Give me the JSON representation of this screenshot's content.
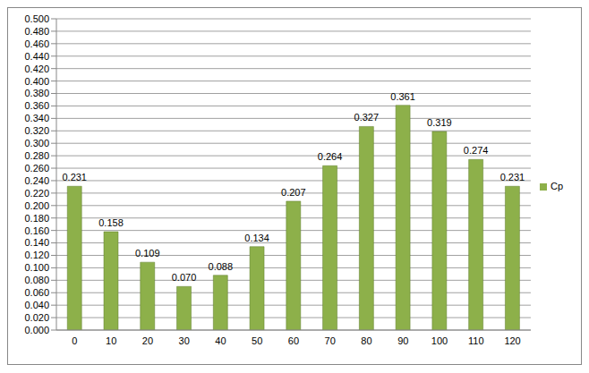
{
  "chart_data": {
    "type": "bar",
    "categories": [
      "0",
      "10",
      "20",
      "30",
      "40",
      "50",
      "60",
      "70",
      "80",
      "90",
      "100",
      "110",
      "120"
    ],
    "series": [
      {
        "name": "Cp",
        "color": "#8db04a",
        "values": [
          0.231,
          0.158,
          0.109,
          0.07,
          0.088,
          0.134,
          0.207,
          0.264,
          0.327,
          0.361,
          0.319,
          0.274,
          0.231
        ],
        "value_labels": [
          "0.231",
          "0.158",
          "0.109",
          "0.070",
          "0.088",
          "0.134",
          "0.207",
          "0.264",
          "0.327",
          "0.361",
          "0.319",
          "0.274",
          "0.231"
        ]
      }
    ],
    "ylim": [
      0,
      0.5
    ],
    "yticks": [
      {
        "value": 0,
        "label": "0.000"
      },
      {
        "value": 0.02,
        "label": "0.020"
      },
      {
        "value": 0.04,
        "label": "0.040"
      },
      {
        "value": 0.06,
        "label": "0.060"
      },
      {
        "value": 0.08,
        "label": "0.080"
      },
      {
        "value": 0.1,
        "label": "0.100"
      },
      {
        "value": 0.12,
        "label": "0.120"
      },
      {
        "value": 0.14,
        "label": "0.140"
      },
      {
        "value": 0.16,
        "label": "0.160"
      },
      {
        "value": 0.18,
        "label": "0.180"
      },
      {
        "value": 0.2,
        "label": "0.200"
      },
      {
        "value": 0.22,
        "label": "0.220"
      },
      {
        "value": 0.24,
        "label": "0.240"
      },
      {
        "value": 0.26,
        "label": "0.260"
      },
      {
        "value": 0.28,
        "label": "0.280"
      },
      {
        "value": 0.3,
        "label": "0.300"
      },
      {
        "value": 0.32,
        "label": "0.320"
      },
      {
        "value": 0.34,
        "label": "0.340"
      },
      {
        "value": 0.36,
        "label": "0.360"
      },
      {
        "value": 0.38,
        "label": "0.380"
      },
      {
        "value": 0.4,
        "label": "0.400"
      },
      {
        "value": 0.42,
        "label": "0.420"
      },
      {
        "value": 0.44,
        "label": "0.440"
      },
      {
        "value": 0.46,
        "label": "0.460"
      },
      {
        "value": 0.48,
        "label": "0.480"
      },
      {
        "value": 0.5,
        "label": "0.500"
      }
    ],
    "grid": true,
    "legend": "right",
    "data_labels": true
  }
}
